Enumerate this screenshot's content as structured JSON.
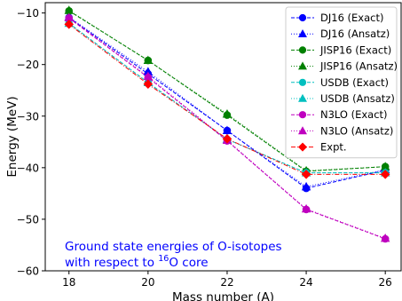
{
  "chart_data": {
    "type": "line",
    "xlabel": "Mass number (A)",
    "ylabel": "Energy (MeV)",
    "xlim": [
      17.4,
      26.4
    ],
    "ylim": [
      -60,
      -8
    ],
    "x_ticks": [
      18,
      20,
      22,
      24,
      26
    ],
    "y_ticks": [
      -60,
      -50,
      -40,
      -30,
      -20,
      -10
    ],
    "x_tick_labels": [
      "18",
      "20",
      "22",
      "24",
      "26"
    ],
    "y_tick_labels": [
      "−60",
      "−50",
      "−40",
      "−30",
      "−20",
      "−10"
    ],
    "x": [
      18,
      20,
      22,
      24,
      26
    ],
    "series": [
      {
        "name": "DJ16 (Exact)",
        "color": "#0000ff",
        "marker": "circle",
        "line": "dashed",
        "values": [
          -10.9,
          -21.8,
          -32.8,
          -44.0,
          -40.5
        ]
      },
      {
        "name": "DJ16 (Ansatz)",
        "color": "#0000ff",
        "marker": "triangle",
        "line": "dotted",
        "values": [
          -10.8,
          -21.4,
          -32.8,
          -43.7,
          -40.4
        ]
      },
      {
        "name": "JISP16 (Exact)",
        "color": "#008000",
        "marker": "circle",
        "line": "dashed",
        "values": [
          -9.6,
          -19.2,
          -29.8,
          -40.7,
          -39.8
        ]
      },
      {
        "name": "JISP16 (Ansatz)",
        "color": "#008000",
        "marker": "triangle",
        "line": "dotted",
        "values": [
          -9.5,
          -19.2,
          -29.6,
          -40.6,
          -39.8
        ]
      },
      {
        "name": "USDB (Exact)",
        "color": "#00bfbf",
        "marker": "circle",
        "line": "dashed",
        "values": [
          -12.0,
          -23.5,
          -34.5,
          -41.0,
          -41.0
        ]
      },
      {
        "name": "USDB (Ansatz)",
        "color": "#00bfbf",
        "marker": "triangle",
        "line": "dotted",
        "values": [
          -12.0,
          -23.5,
          -34.5,
          -41.0,
          -41.0
        ]
      },
      {
        "name": "N3LO (Exact)",
        "color": "#bf00bf",
        "marker": "circle",
        "line": "dashed",
        "values": [
          -11.0,
          -22.5,
          -34.8,
          -48.1,
          -53.8
        ]
      },
      {
        "name": "N3LO (Ansatz)",
        "color": "#bf00bf",
        "marker": "triangle",
        "line": "dotted",
        "values": [
          -10.9,
          -22.3,
          -34.7,
          -48.0,
          -53.7
        ]
      },
      {
        "name": "Expt.",
        "color": "#ff0000",
        "marker": "diamond",
        "line": "dashdot",
        "values": [
          -12.2,
          -23.8,
          -34.4,
          -41.3,
          -41.3
        ]
      }
    ],
    "annotation": {
      "line1": "Ground state energies of O-isotopes",
      "line2_prefix": "with respect to ",
      "line2_sup": "16",
      "line2_suffix": "O core",
      "color": "#0000ff"
    },
    "legend_position": "top-right",
    "grid": false
  }
}
